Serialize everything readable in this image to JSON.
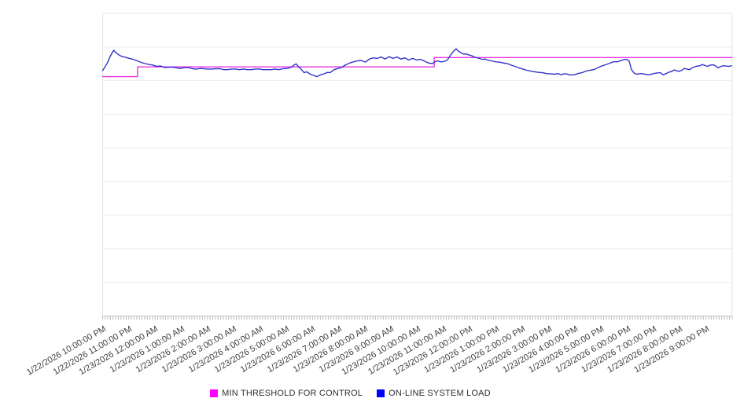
{
  "chart_data": {
    "type": "line",
    "title": "",
    "x_axis": {
      "unit": "hours",
      "range_hours": [
        0,
        24
      ],
      "minor_ticks_per_hour": 10,
      "tick_labels": [
        "1/22/2026 10:00:00 PM",
        "1/22/2026 11:00:00 PM",
        "1/23/2026 12:00:00 AM",
        "1/23/2026 1:00:00 AM",
        "1/23/2026 2:00:00 AM",
        "1/23/2026 3:00:00 AM",
        "1/23/2026 4:00:00 AM",
        "1/23/2026 5:00:00 AM",
        "1/23/2026 6:00:00 AM",
        "1/23/2026 7:00:00 AM",
        "1/23/2026 8:00:00 AM",
        "1/23/2026 9:00:00 AM",
        "1/23/2026 10:00:00 AM",
        "1/23/2026 11:00:00 AM",
        "1/23/2026 12:00:00 PM",
        "1/23/2026 1:00:00 PM",
        "1/23/2026 2:00:00 PM",
        "1/23/2026 3:00:00 PM",
        "1/23/2026 4:00:00 PM",
        "1/23/2026 5:00:00 PM",
        "1/23/2026 6:00:00 PM",
        "1/23/2026 7:00:00 PM",
        "1/23/2026 8:00:00 PM",
        "1/23/2026 9:00:00 PM"
      ]
    },
    "y_axis": {
      "labels_visible": false,
      "gridline_divisions": 9,
      "value_unit": "percent-of-plot-height",
      "range": [
        0,
        100
      ]
    },
    "grid": "on",
    "legend_position": "bottom",
    "style": {
      "gridline_color": "#ededed",
      "border_color": "#e3e3e3",
      "axis_line_color": "#c9c9c9",
      "tick_color": "#b8b8b8",
      "label_color": "#3f3f3f",
      "background": "#ffffff"
    },
    "series": [
      {
        "name": "MIN THRESHOLD FOR CONTROL",
        "type": "step",
        "color": "#e633e0",
        "marker_color": "#ff00ff",
        "points": [
          [
            0,
            79.1
          ],
          [
            1.33,
            79.1
          ],
          [
            1.33,
            82.3
          ],
          [
            12.64,
            82.3
          ],
          [
            12.64,
            85.4
          ],
          [
            24,
            85.4
          ]
        ]
      },
      {
        "name": "ON-LINE SYSTEM LOAD",
        "type": "line",
        "color": "#3232cd",
        "marker_color": "#0000ff",
        "points": [
          [
            0,
            81.1
          ],
          [
            0.09,
            82.3
          ],
          [
            0.18,
            83.6
          ],
          [
            0.3,
            86
          ],
          [
            0.42,
            87.8
          ],
          [
            0.51,
            87
          ],
          [
            0.63,
            86.2
          ],
          [
            0.75,
            85.7
          ],
          [
            0.87,
            85.5
          ],
          [
            1.02,
            85.1
          ],
          [
            1.17,
            84.8
          ],
          [
            1.32,
            84.3
          ],
          [
            1.47,
            83.8
          ],
          [
            1.62,
            83.4
          ],
          [
            1.77,
            83.1
          ],
          [
            1.92,
            82.9
          ],
          [
            2.07,
            82.5
          ],
          [
            2.22,
            82.6
          ],
          [
            2.37,
            82.1
          ],
          [
            2.52,
            82.2
          ],
          [
            2.67,
            82.2
          ],
          [
            2.82,
            82
          ],
          [
            2.97,
            81.8
          ],
          [
            3.12,
            82.1
          ],
          [
            3.27,
            82.1
          ],
          [
            3.42,
            81.7
          ],
          [
            3.57,
            81.6
          ],
          [
            3.72,
            81.8
          ],
          [
            3.87,
            81.7
          ],
          [
            4.02,
            81.6
          ],
          [
            4.17,
            81.6
          ],
          [
            4.32,
            81.7
          ],
          [
            4.47,
            81.7
          ],
          [
            4.62,
            81.4
          ],
          [
            4.77,
            81.4
          ],
          [
            4.92,
            81.6
          ],
          [
            5.07,
            81.6
          ],
          [
            5.22,
            81.4
          ],
          [
            5.37,
            81.6
          ],
          [
            5.52,
            81.4
          ],
          [
            5.67,
            81.4
          ],
          [
            5.82,
            81.6
          ],
          [
            5.97,
            81.6
          ],
          [
            6.12,
            81.4
          ],
          [
            6.27,
            81.4
          ],
          [
            6.42,
            81.4
          ],
          [
            6.57,
            81.6
          ],
          [
            6.72,
            81.4
          ],
          [
            6.87,
            81.7
          ],
          [
            7.02,
            81.8
          ],
          [
            7.17,
            82.1
          ],
          [
            7.29,
            82.9
          ],
          [
            7.38,
            83.3
          ],
          [
            7.47,
            82.3
          ],
          [
            7.56,
            81.6
          ],
          [
            7.68,
            80.4
          ],
          [
            7.77,
            80.7
          ],
          [
            7.92,
            79.9
          ],
          [
            8.01,
            79.6
          ],
          [
            8.16,
            79.1
          ],
          [
            8.31,
            79.7
          ],
          [
            8.43,
            80
          ],
          [
            8.58,
            80.5
          ],
          [
            8.67,
            80.4
          ],
          [
            8.82,
            81.4
          ],
          [
            8.97,
            81.8
          ],
          [
            9.12,
            82.2
          ],
          [
            9.27,
            83
          ],
          [
            9.42,
            83.6
          ],
          [
            9.57,
            84
          ],
          [
            9.72,
            84.3
          ],
          [
            9.87,
            84.4
          ],
          [
            10.02,
            83.9
          ],
          [
            10.17,
            84.9
          ],
          [
            10.32,
            85.3
          ],
          [
            10.47,
            85.1
          ],
          [
            10.62,
            85.6
          ],
          [
            10.77,
            84.9
          ],
          [
            10.92,
            85.7
          ],
          [
            11.07,
            85.1
          ],
          [
            11.22,
            85.6
          ],
          [
            11.37,
            84.9
          ],
          [
            11.52,
            85.3
          ],
          [
            11.67,
            84.6
          ],
          [
            11.82,
            85.1
          ],
          [
            11.97,
            84.6
          ],
          [
            12.12,
            84.8
          ],
          [
            12.27,
            84.2
          ],
          [
            12.42,
            83.6
          ],
          [
            12.57,
            83.4
          ],
          [
            12.66,
            84
          ],
          [
            12.78,
            84.3
          ],
          [
            12.87,
            84
          ],
          [
            12.96,
            84
          ],
          [
            13.08,
            84.3
          ],
          [
            13.17,
            84.9
          ],
          [
            13.26,
            86.2
          ],
          [
            13.38,
            87.5
          ],
          [
            13.47,
            88.3
          ],
          [
            13.56,
            87.5
          ],
          [
            13.68,
            86.9
          ],
          [
            13.77,
            86.5
          ],
          [
            13.86,
            86.6
          ],
          [
            13.98,
            86.2
          ],
          [
            14.07,
            86
          ],
          [
            14.16,
            85.6
          ],
          [
            14.28,
            85.3
          ],
          [
            14.37,
            85.1
          ],
          [
            14.46,
            84.8
          ],
          [
            14.58,
            84.9
          ],
          [
            14.67,
            84.6
          ],
          [
            14.82,
            84.3
          ],
          [
            14.97,
            84
          ],
          [
            15.12,
            83.9
          ],
          [
            15.27,
            83.6
          ],
          [
            15.42,
            83.4
          ],
          [
            15.57,
            82.9
          ],
          [
            15.72,
            82.5
          ],
          [
            15.87,
            82
          ],
          [
            16.02,
            81.6
          ],
          [
            16.17,
            81.2
          ],
          [
            16.32,
            80.9
          ],
          [
            16.47,
            80.7
          ],
          [
            16.62,
            80.5
          ],
          [
            16.77,
            80.4
          ],
          [
            16.92,
            80.1
          ],
          [
            17.07,
            80
          ],
          [
            17.22,
            79.9
          ],
          [
            17.37,
            80.1
          ],
          [
            17.46,
            79.7
          ],
          [
            17.58,
            80
          ],
          [
            17.67,
            80
          ],
          [
            17.82,
            79.6
          ],
          [
            17.97,
            79.7
          ],
          [
            18.12,
            80.1
          ],
          [
            18.27,
            80.4
          ],
          [
            18.42,
            80.9
          ],
          [
            18.57,
            81.2
          ],
          [
            18.72,
            81.4
          ],
          [
            18.87,
            82
          ],
          [
            19.02,
            82.6
          ],
          [
            19.17,
            83
          ],
          [
            19.32,
            83.5
          ],
          [
            19.47,
            84
          ],
          [
            19.62,
            84
          ],
          [
            19.77,
            84.4
          ],
          [
            19.89,
            84.8
          ],
          [
            19.98,
            84.8
          ],
          [
            20.07,
            84.3
          ],
          [
            20.16,
            81.4
          ],
          [
            20.28,
            80.1
          ],
          [
            20.37,
            79.9
          ],
          [
            20.52,
            80.1
          ],
          [
            20.67,
            79.9
          ],
          [
            20.82,
            79.7
          ],
          [
            20.97,
            80
          ],
          [
            21.12,
            80.3
          ],
          [
            21.27,
            80.4
          ],
          [
            21.36,
            79.7
          ],
          [
            21.48,
            80.1
          ],
          [
            21.57,
            80.5
          ],
          [
            21.72,
            80.9
          ],
          [
            21.78,
            81.3
          ],
          [
            21.87,
            81.1
          ],
          [
            21.96,
            80.8
          ],
          [
            22.08,
            81.2
          ],
          [
            22.17,
            81.8
          ],
          [
            22.26,
            81.6
          ],
          [
            22.38,
            81.4
          ],
          [
            22.47,
            82
          ],
          [
            22.62,
            82.5
          ],
          [
            22.77,
            82.7
          ],
          [
            22.86,
            83.1
          ],
          [
            22.98,
            82.7
          ],
          [
            23.07,
            82.5
          ],
          [
            23.16,
            82.9
          ],
          [
            23.28,
            83
          ],
          [
            23.37,
            82.6
          ],
          [
            23.46,
            82
          ],
          [
            23.58,
            82.5
          ],
          [
            23.67,
            82.7
          ],
          [
            23.76,
            82.6
          ],
          [
            23.88,
            82.5
          ],
          [
            23.97,
            82.7
          ]
        ]
      }
    ]
  },
  "legend": {
    "items": [
      {
        "label": "MIN THRESHOLD FOR CONTROL"
      },
      {
        "label": "ON-LINE SYSTEM LOAD"
      }
    ]
  }
}
